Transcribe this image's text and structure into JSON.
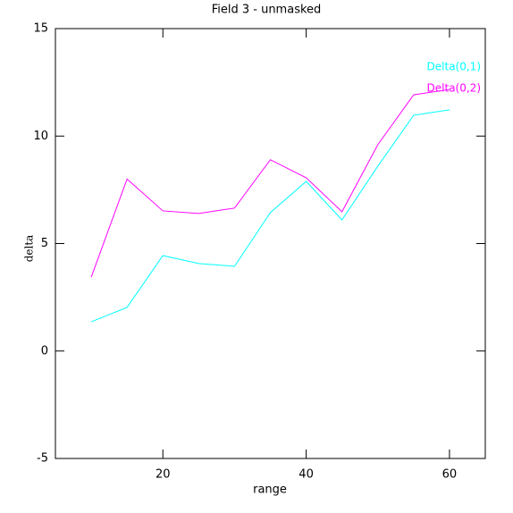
{
  "chart_data": {
    "type": "line",
    "title": "Field 3 - unmasked",
    "x_label": "range",
    "y_label": "delta",
    "x": [
      10,
      15,
      20,
      25,
      30,
      35,
      40,
      45,
      50,
      55,
      60
    ],
    "series": [
      {
        "name": "Delta(0,1)",
        "color": "#00ffff",
        "values": [
          1.36,
          2.03,
          4.44,
          4.07,
          3.94,
          6.44,
          7.89,
          6.1,
          8.6,
          10.97,
          11.22
        ]
      },
      {
        "name": "Delta(0,2)",
        "color": "#ff00ff",
        "values": [
          3.44,
          8.0,
          6.52,
          6.4,
          6.65,
          8.9,
          8.06,
          6.48,
          9.6,
          11.92,
          12.17
        ]
      }
    ],
    "xlim": [
      5,
      65
    ],
    "ylim": [
      -5,
      15
    ],
    "xticks": [
      20,
      40,
      60
    ],
    "yticks": [
      -5,
      0,
      5,
      10,
      15
    ]
  }
}
